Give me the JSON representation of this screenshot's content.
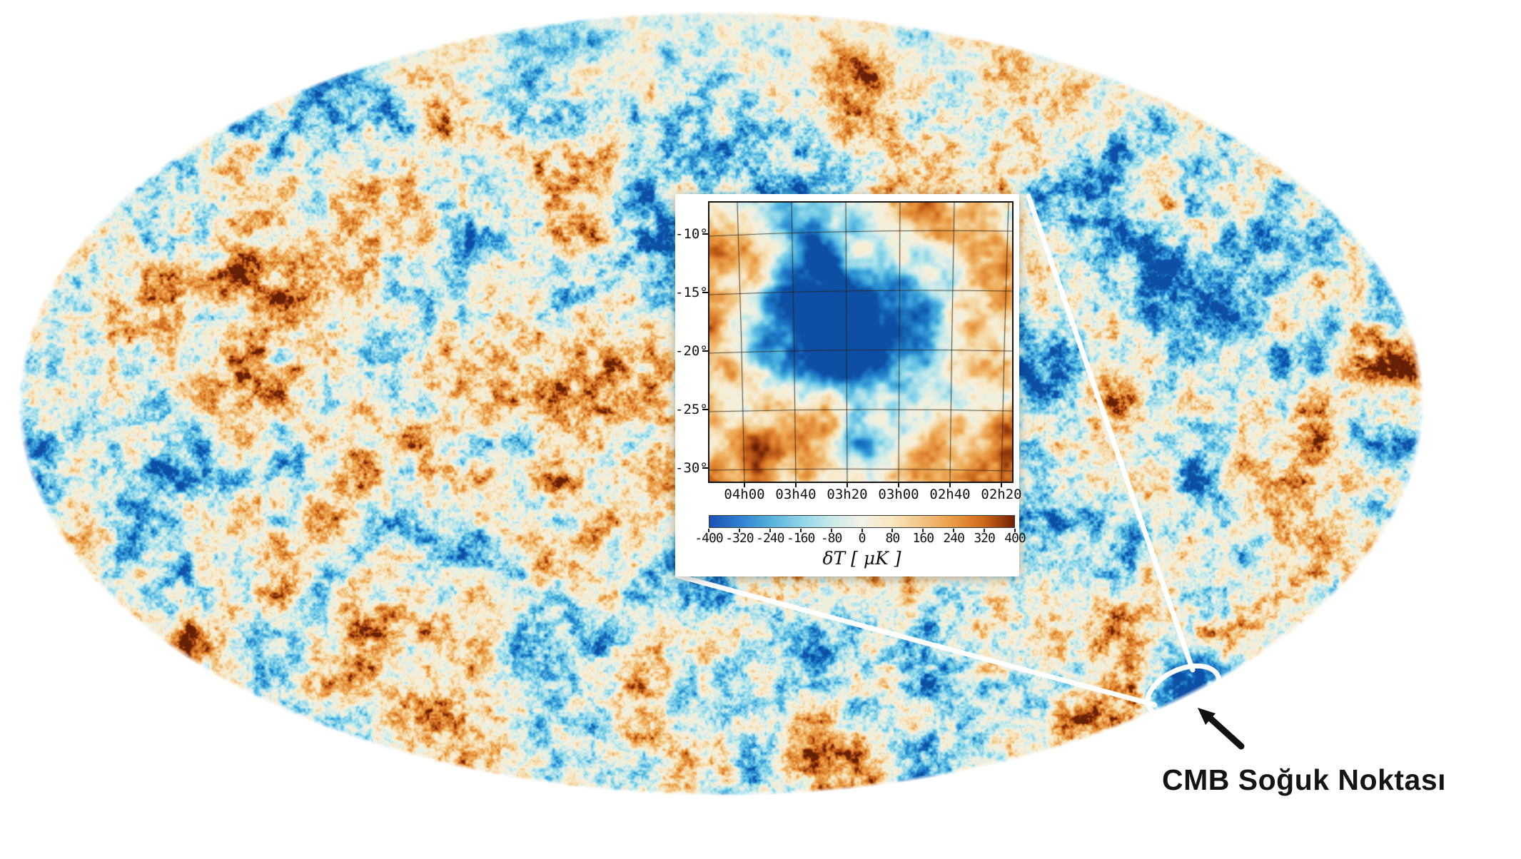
{
  "chart_data": {
    "type": "heatmap",
    "title": "",
    "main_map": {
      "shape": "mollweide-ellipse",
      "palette": [
        "#0d4fa4",
        "#1e7ac6",
        "#44abdd",
        "#7fd0e8",
        "#b6e5ec",
        "#e2efe6",
        "#f3f0de",
        "#f8ecd0",
        "#f4d7a4",
        "#efab58",
        "#df8530",
        "#bf5c18",
        "#93380c",
        "#662005"
      ]
    },
    "inset": {
      "x_ticks": [
        "04h00",
        "03h40",
        "03h20",
        "03h00",
        "02h40",
        "02h20"
      ],
      "y_ticks": [
        "-10°",
        "-15°",
        "-20°",
        "-25°",
        "-30°"
      ],
      "grid": true
    },
    "colorbar": {
      "range": [
        -400,
        400
      ],
      "ticks": [
        "-400",
        "-320",
        "-240",
        "-160",
        "-80",
        "0",
        "80",
        "160",
        "240",
        "320",
        "400"
      ],
      "label": "δT [ μK ]",
      "gradient": [
        "#1c50b4",
        "#2f7fd0",
        "#55b0dc",
        "#8fd4e8",
        "#c8e9ea",
        "#f4f1e4",
        "#f8e7c0",
        "#f2c280",
        "#ea9a44",
        "#cf6716",
        "#701f06"
      ]
    },
    "annotation": {
      "label": "CMB Soğuk Noktası",
      "color": "#141414",
      "callout_color": "#ffffff",
      "arrow_color": "#111111"
    }
  }
}
